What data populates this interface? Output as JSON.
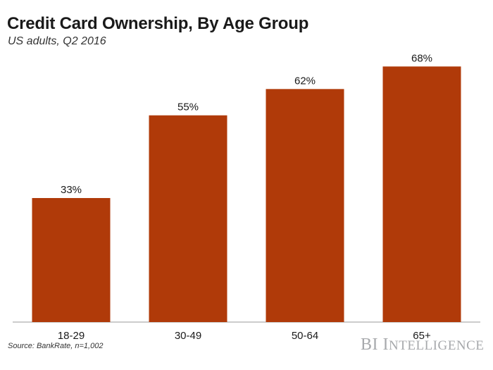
{
  "chart_data": {
    "type": "bar",
    "title": "Credit Card Ownership, By Age Group",
    "subtitle": "US adults, Q2 2016",
    "categories": [
      "18-29",
      "30-49",
      "50-64",
      "65+"
    ],
    "values": [
      33,
      55,
      62,
      68
    ],
    "data_labels": [
      "33%",
      "55%",
      "62%",
      "68%"
    ],
    "unit": "%",
    "ylim": [
      0,
      75
    ],
    "grid": false,
    "bar_color": "#b03a09",
    "axis_color": "#9a9a9a"
  },
  "source": "Source: BankRate, n=1,002",
  "brand": "BI Intelligence",
  "brand_color": "#a7a9ac"
}
